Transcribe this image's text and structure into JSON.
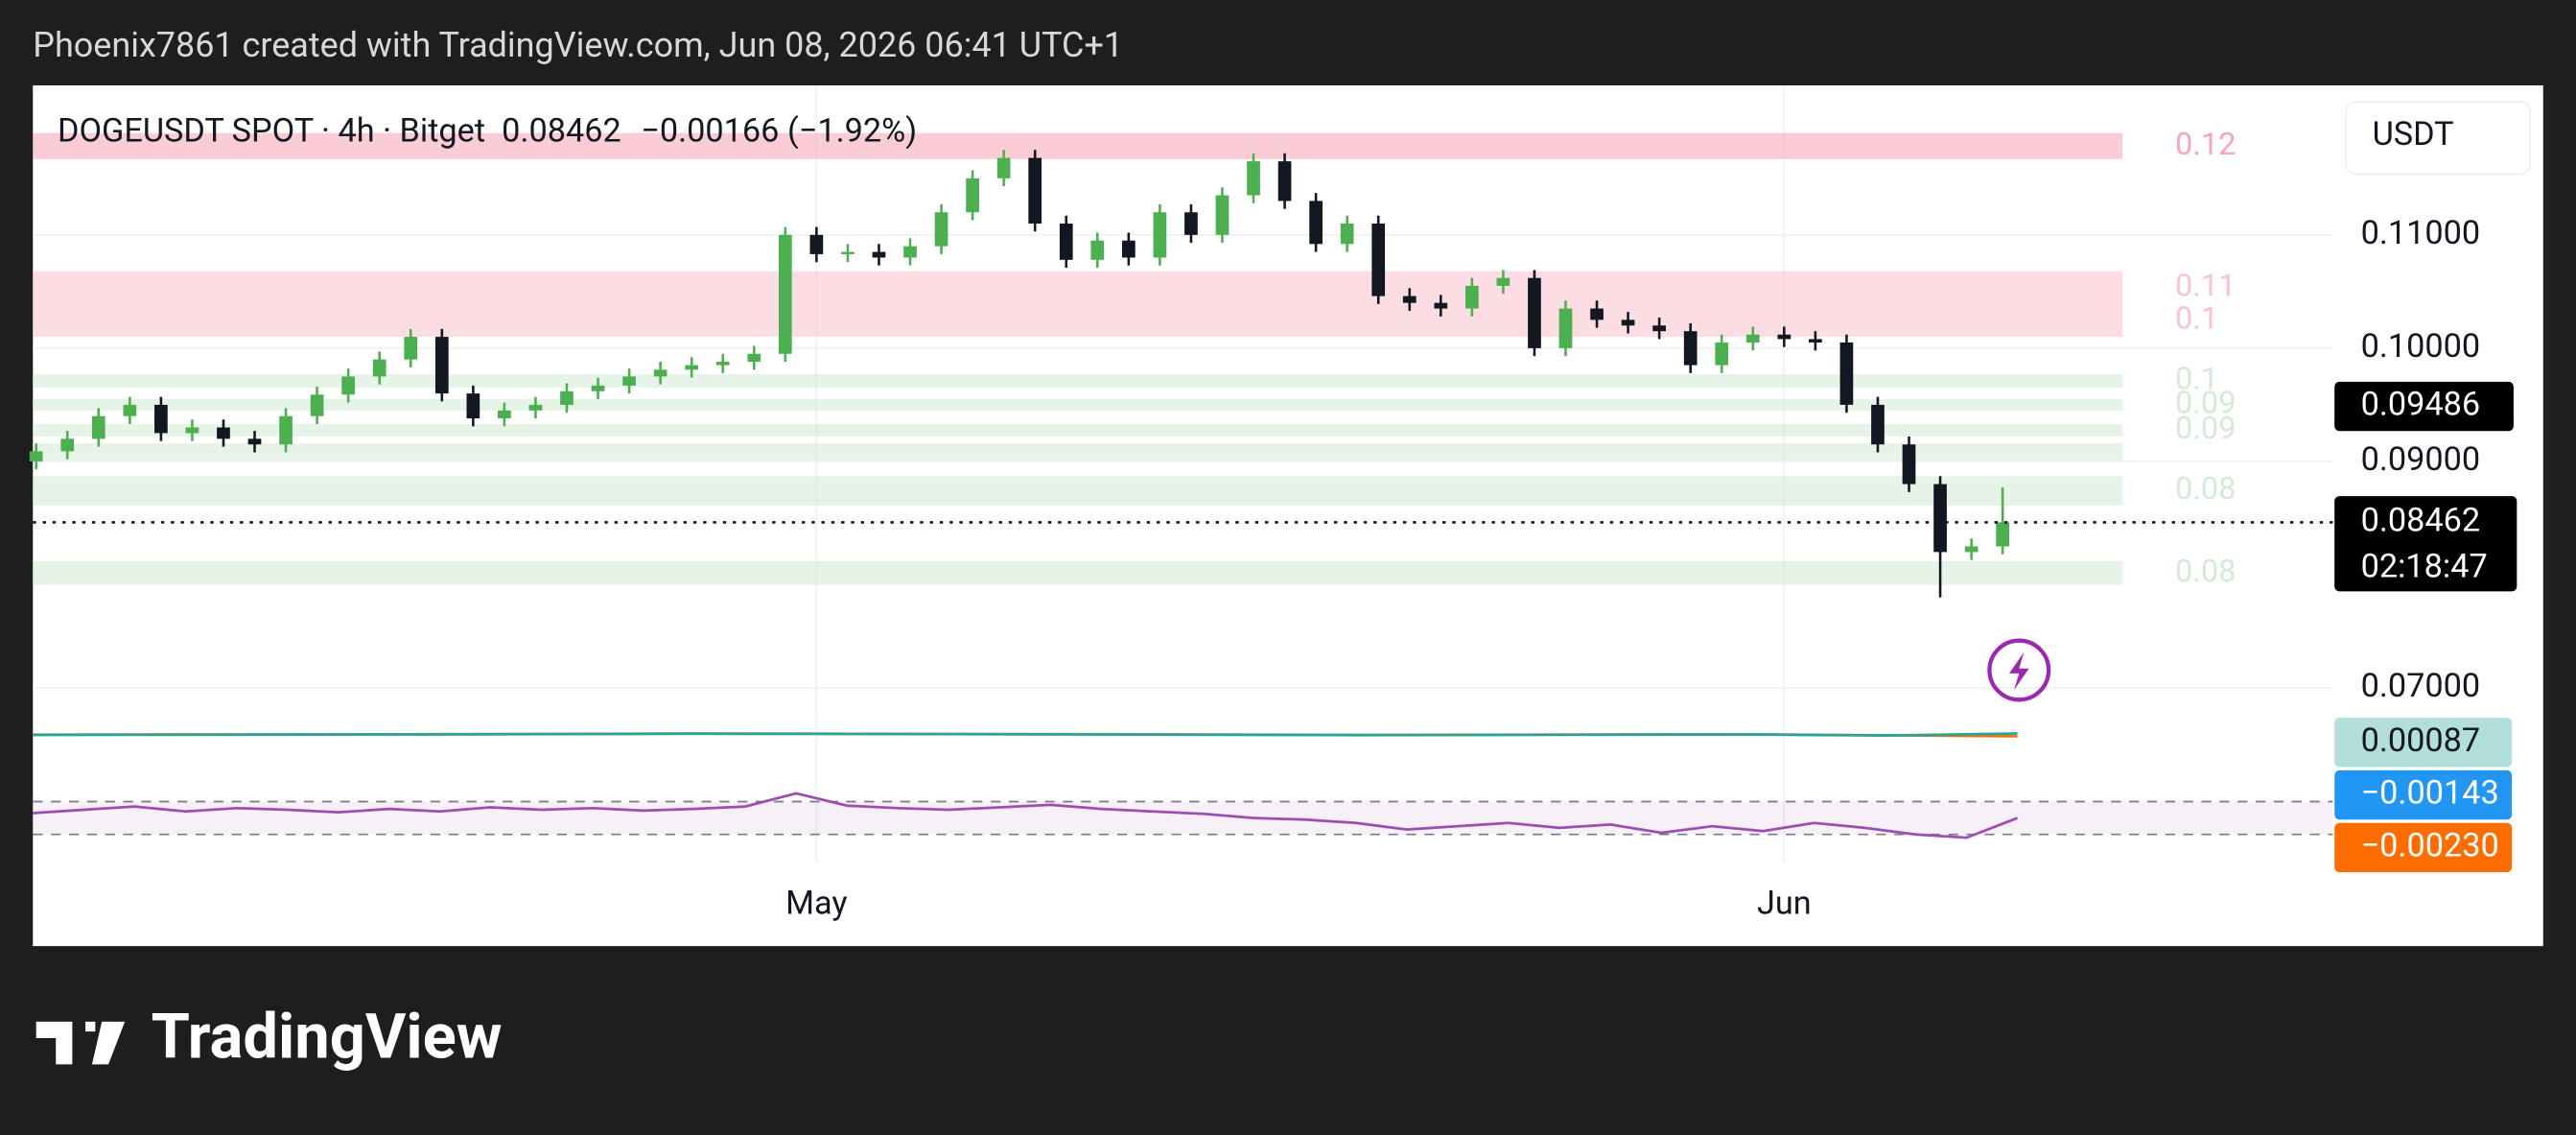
{
  "header": {
    "text": "Phoenix7861 created with TradingView.com, Jun 08, 2026 06:41 UTC+1"
  },
  "chart_data": {
    "type": "candlestick",
    "title": "DOGEUSDT SPOT · 4h · Bitget",
    "last": 0.08462,
    "change": {
      "value": -0.00166,
      "label": "−0.00166"
    },
    "change_pct": {
      "value": -1.92,
      "label": "(−1.92%)"
    },
    "currency": "USDT",
    "countdown": "02:18:47",
    "marker": 0.09486,
    "categories": [
      null,
      null,
      null,
      null,
      null,
      null,
      null,
      null,
      null,
      null,
      null,
      null,
      null,
      null,
      null,
      null,
      null,
      null,
      null,
      null,
      null,
      null,
      null,
      null,
      null,
      "May",
      null,
      null,
      null,
      null,
      null,
      null,
      null,
      null,
      null,
      null,
      null,
      null,
      null,
      null,
      null,
      null,
      null,
      null,
      null,
      null,
      null,
      null,
      null,
      null,
      null,
      null,
      null,
      null,
      null,
      null,
      "Jun",
      null,
      null,
      null,
      null,
      null,
      null,
      null
    ],
    "open": [
      0.09,
      0.0909,
      0.092,
      0.094,
      0.095,
      0.0925,
      0.093,
      0.092,
      0.0915,
      0.094,
      0.0959,
      0.0975,
      0.099,
      0.101,
      0.096,
      0.0938,
      0.0945,
      0.095,
      0.0962,
      0.0967,
      0.0975,
      0.0981,
      0.0985,
      0.0988,
      0.0995,
      0.11,
      0.1083,
      0.1085,
      0.108,
      0.109,
      0.112,
      0.115,
      0.1168,
      0.111,
      0.1078,
      0.1095,
      0.108,
      0.112,
      0.11,
      0.1135,
      0.1165,
      0.113,
      0.1092,
      0.111,
      0.1046,
      0.104,
      0.1035,
      0.1055,
      0.1062,
      0.1,
      0.1035,
      0.1025,
      0.102,
      0.1015,
      0.0985,
      0.1005,
      0.1012,
      0.1008,
      0.1005,
      0.095,
      0.0915,
      0.088,
      0.082,
      0.0825
    ],
    "high": [
      0.0916,
      0.0927,
      0.0947,
      0.0957,
      0.0957,
      0.0937,
      0.0937,
      0.0927,
      0.0947,
      0.0966,
      0.0982,
      0.0997,
      0.1017,
      0.1017,
      0.0967,
      0.0952,
      0.0957,
      0.0969,
      0.0974,
      0.0982,
      0.0988,
      0.0992,
      0.0995,
      0.1002,
      0.1107,
      0.1107,
      0.1092,
      0.1092,
      0.1097,
      0.1127,
      0.1157,
      0.1175,
      0.1175,
      0.1117,
      0.1102,
      0.1102,
      0.1127,
      0.1127,
      0.1142,
      0.1172,
      0.1172,
      0.1137,
      0.1117,
      0.1117,
      0.1053,
      0.1047,
      0.1062,
      0.1069,
      0.1069,
      0.1042,
      0.1042,
      0.1032,
      0.1027,
      0.1022,
      0.1012,
      0.1019,
      0.1019,
      0.1015,
      0.1012,
      0.0957,
      0.0922,
      0.0887,
      0.0832,
      0.0877
    ],
    "low": [
      0.0893,
      0.0902,
      0.0913,
      0.0933,
      0.0918,
      0.0918,
      0.0913,
      0.0908,
      0.0908,
      0.0933,
      0.0952,
      0.0968,
      0.0983,
      0.0953,
      0.0931,
      0.0931,
      0.0938,
      0.0943,
      0.0955,
      0.096,
      0.0968,
      0.0974,
      0.0978,
      0.0981,
      0.0988,
      0.1076,
      0.1076,
      0.1073,
      0.1073,
      0.1083,
      0.1113,
      0.1143,
      0.1103,
      0.1071,
      0.1071,
      0.1073,
      0.1073,
      0.1093,
      0.1093,
      0.1128,
      0.1123,
      0.1085,
      0.1085,
      0.1039,
      0.1033,
      0.1028,
      0.1028,
      0.1048,
      0.0993,
      0.0993,
      0.1018,
      0.1013,
      0.1008,
      0.0978,
      0.0978,
      0.0998,
      0.1001,
      0.0998,
      0.0943,
      0.0908,
      0.0873,
      0.078,
      0.0813,
      0.0818
    ],
    "close": [
      0.0909,
      0.092,
      0.094,
      0.095,
      0.0925,
      0.093,
      0.092,
      0.0915,
      0.094,
      0.0959,
      0.0975,
      0.099,
      0.101,
      0.096,
      0.0938,
      0.0945,
      0.095,
      0.0962,
      0.0967,
      0.0975,
      0.0981,
      0.0985,
      0.0988,
      0.0995,
      0.11,
      0.1083,
      0.1085,
      0.108,
      0.109,
      0.112,
      0.115,
      0.1168,
      0.111,
      0.1078,
      0.1095,
      0.108,
      0.112,
      0.11,
      0.1135,
      0.1165,
      0.113,
      0.1092,
      0.111,
      0.1046,
      0.104,
      0.1035,
      0.1055,
      0.1062,
      0.1,
      0.1035,
      0.1025,
      0.102,
      0.1015,
      0.0985,
      0.1005,
      0.1012,
      0.1008,
      0.1005,
      0.095,
      0.0915,
      0.088,
      0.082,
      0.0825,
      0.08462
    ],
    "up_color": "#4caf50",
    "down_color": "#131722",
    "ylim": [
      0.0678,
      0.1232
    ],
    "yticks": [
      {
        "value": 0.11,
        "label": "0.11000"
      },
      {
        "value": 0.1,
        "label": "0.10000"
      },
      {
        "value": 0.09,
        "label": "0.09000"
      },
      {
        "value": 0.07,
        "label": "0.07000"
      }
    ],
    "grid": true,
    "zones": [
      {
        "from": 0.1167,
        "to": 0.119,
        "color": "#f48fa3",
        "label": "0.12"
      },
      {
        "from": 0.1039,
        "to": 0.1068,
        "color": "#f8b4c0",
        "label": "0.11"
      },
      {
        "from": 0.101,
        "to": 0.1039,
        "color": "#f8b4c0",
        "label": "0.1"
      },
      {
        "from": 0.0965,
        "to": 0.0977,
        "color": "#c8e6c9",
        "label": "0.1"
      },
      {
        "from": 0.0945,
        "to": 0.0955,
        "color": "#c8e6c9",
        "label": "0.09"
      },
      {
        "from": 0.0922,
        "to": 0.0933,
        "color": "#c8e6c9",
        "label": "0.09"
      },
      {
        "from": 0.0901,
        "to": 0.0916,
        "color": "#c8e6c9"
      },
      {
        "from": 0.0861,
        "to": 0.0887,
        "color": "#c8e6c9",
        "label": "0.08"
      },
      {
        "from": 0.0791,
        "to": 0.0812,
        "color": "#c8e6c9",
        "label": "0.08"
      }
    ],
    "panes": [
      {
        "type": "line",
        "ylim": [
          -0.02,
          0.02
        ],
        "series": [
          {
            "color": "#ff6d00",
            "values": [
              -0.0005,
              -0.0003,
              -0.0002,
              0,
              0.0003,
              0.0008,
              0.0005,
              0.0002,
              0,
              -0.0004,
              -0.0008,
              -0.0006,
              -0.0003,
              -0.0001,
              -0.0012,
              -0.0023
            ]
          },
          {
            "color": "#26a69a",
            "values": [
              -0.0008,
              -0.0006,
              -0.0004,
              -0.0002,
              0.0001,
              0.0005,
              0.0004,
              0.0001,
              -0.0002,
              -0.0006,
              -0.001,
              -0.0008,
              -0.0005,
              -0.0003,
              -0.0015,
              0.00087
            ]
          }
        ],
        "labels": [
          0.00087,
          {
            "value": -0.00143,
            "label": "−0.00143"
          },
          {
            "value": -0.0023,
            "label": "−0.00230"
          }
        ],
        "label_colors": [
          "#b2dfdb",
          "#2196f3",
          "#ff6d00"
        ]
      },
      {
        "type": "line",
        "ylim": [
          0,
          100
        ],
        "bands": [
          30,
          70
        ],
        "series": [
          {
            "color": "#9c4fb0",
            "values": [
              56,
              60,
              64,
              58,
              62,
              60,
              57,
              61,
              58,
              63,
              60,
              62,
              59,
              61,
              64,
              80,
              65,
              62,
              60,
              63,
              66,
              61,
              58,
              55,
              50,
              48,
              44,
              36,
              40,
              44,
              38,
              42,
              32,
              40,
              34,
              44,
              38,
              30,
              26,
              50
            ]
          }
        ]
      }
    ]
  }
}
